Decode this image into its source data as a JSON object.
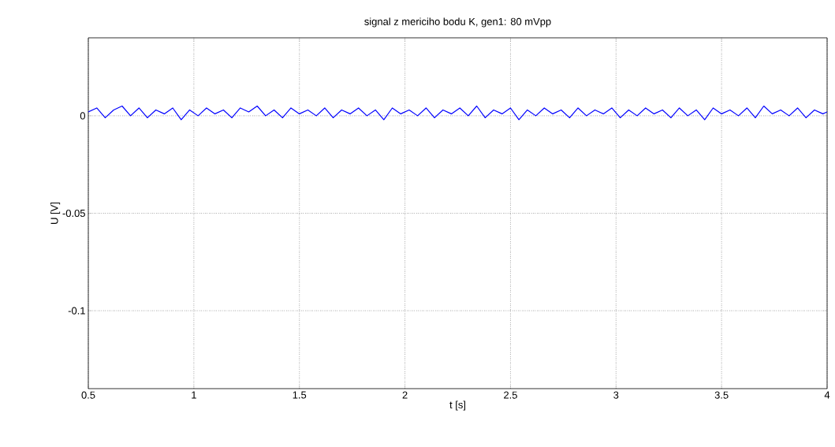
{
  "chart_data": {
    "type": "line",
    "title": "signal z mericiho bodu K, gen1: 80 mVpp",
    "xlabel": "t [s]",
    "ylabel": "U [V]",
    "x": [
      0.5,
      0.54,
      0.58,
      0.62,
      0.66,
      0.7,
      0.74,
      0.78,
      0.82,
      0.86,
      0.9,
      0.94,
      0.98,
      1.02,
      1.06,
      1.1,
      1.14,
      1.18,
      1.22,
      1.26,
      1.3,
      1.34,
      1.38,
      1.42,
      1.46,
      1.5,
      1.54,
      1.58,
      1.62,
      1.66,
      1.7,
      1.74,
      1.78,
      1.82,
      1.86,
      1.9,
      1.94,
      1.98,
      2.02,
      2.06,
      2.1,
      2.14,
      2.18,
      2.22,
      2.26,
      2.3,
      2.34,
      2.38,
      2.42,
      2.46,
      2.5,
      2.54,
      2.58,
      2.62,
      2.66,
      2.7,
      2.74,
      2.78,
      2.82,
      2.86,
      2.9,
      2.94,
      2.98,
      3.02,
      3.06,
      3.1,
      3.14,
      3.18,
      3.22,
      3.26,
      3.3,
      3.34,
      3.38,
      3.42,
      3.46,
      3.5,
      3.54,
      3.58,
      3.62,
      3.66,
      3.7,
      3.74,
      3.78,
      3.82,
      3.86,
      3.9,
      3.94,
      3.98,
      4.0
    ],
    "series": [
      {
        "color": "#0000ff",
        "values": [
          0.002,
          0.004,
          -0.001,
          0.003,
          0.005,
          0.0,
          0.004,
          -0.001,
          0.003,
          0.001,
          0.004,
          -0.002,
          0.003,
          0.0,
          0.004,
          0.001,
          0.003,
          -0.001,
          0.004,
          0.002,
          0.005,
          0.0,
          0.003,
          -0.001,
          0.004,
          0.001,
          0.003,
          0.0,
          0.004,
          -0.001,
          0.003,
          0.001,
          0.004,
          0.0,
          0.003,
          -0.002,
          0.004,
          0.001,
          0.003,
          0.0,
          0.004,
          -0.001,
          0.003,
          0.001,
          0.004,
          0.0,
          0.005,
          -0.001,
          0.003,
          0.001,
          0.004,
          -0.002,
          0.003,
          0.0,
          0.004,
          0.001,
          0.003,
          -0.001,
          0.004,
          0.0,
          0.003,
          0.001,
          0.004,
          -0.001,
          0.003,
          0.0,
          0.004,
          0.001,
          0.003,
          -0.001,
          0.004,
          0.0,
          0.003,
          -0.002,
          0.004,
          0.001,
          0.003,
          0.0,
          0.004,
          -0.001,
          0.005,
          0.001,
          0.003,
          0.0,
          0.004,
          -0.001,
          0.003,
          0.001,
          0.002
        ]
      }
    ],
    "xlim": [
      0.5,
      4
    ],
    "ylim": [
      -0.14,
      0.04
    ],
    "xticks": [
      0.5,
      1,
      1.5,
      2,
      2.5,
      3,
      3.5,
      4
    ],
    "yticks": [
      -0.1,
      -0.05,
      0
    ],
    "grid": true,
    "marker": "none",
    "line_style": "solid"
  }
}
